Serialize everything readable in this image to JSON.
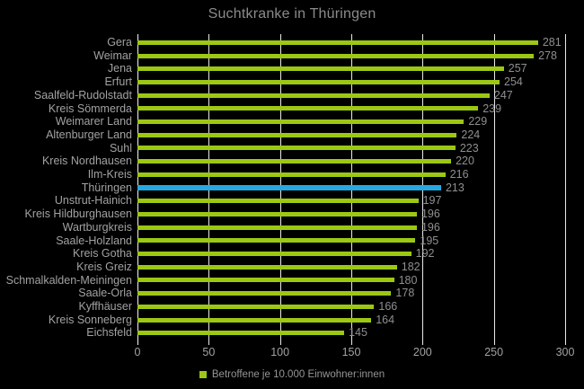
{
  "title": "Suchtkranke in Thüringen",
  "legend": {
    "label": "Betroffene je 10.000 Einwohner:innen"
  },
  "colors": {
    "background": "#000000",
    "bar": "#9cc813",
    "highlight_bar": "#25a9e0",
    "gridline": "#e9e9e9",
    "axis_line": "#f2f2f2",
    "title_text": "#8b8b8b",
    "category_text": "#a2a2a2",
    "value_text": "#8f8f8f",
    "tick_text": "#a2a2a2",
    "legend_text": "#969696"
  },
  "chart_data": {
    "type": "bar",
    "orientation": "horizontal",
    "title": "Suchtkranke in Thüringen",
    "categories": [
      "Gera",
      "Weimar",
      "Jena",
      "Erfurt",
      "Saalfeld-Rudolstadt",
      "Kreis Sömmerda",
      "Weimarer Land",
      "Altenburger Land",
      "Suhl",
      "Kreis Nordhausen",
      "Ilm-Kreis",
      "Thüringen",
      "Unstrut-Hainich",
      "Kreis Hildburghausen",
      "Wartburgkreis",
      "Saale-Holzland",
      "Kreis Gotha",
      "Kreis Greiz",
      "Schmalkalden-Meiningen",
      "Saale-Orla",
      "Kyffhäuser",
      "Kreis Sonneberg",
      "Eichsfeld"
    ],
    "values": [
      281,
      278,
      257,
      254,
      247,
      239,
      229,
      224,
      223,
      220,
      216,
      213,
      197,
      196,
      196,
      195,
      192,
      182,
      180,
      178,
      166,
      164,
      145
    ],
    "highlight_category": "Thüringen",
    "highlight_index": 11,
    "xlabel": "",
    "ylabel": "",
    "xlim": [
      0,
      300
    ],
    "x_ticks": [
      0,
      50,
      100,
      150,
      200,
      250,
      300
    ],
    "grid": true,
    "value_labels": true,
    "legend_entries": [
      "Betroffene je 10.000 Einwohner:innen"
    ],
    "legend_position": "bottom"
  }
}
